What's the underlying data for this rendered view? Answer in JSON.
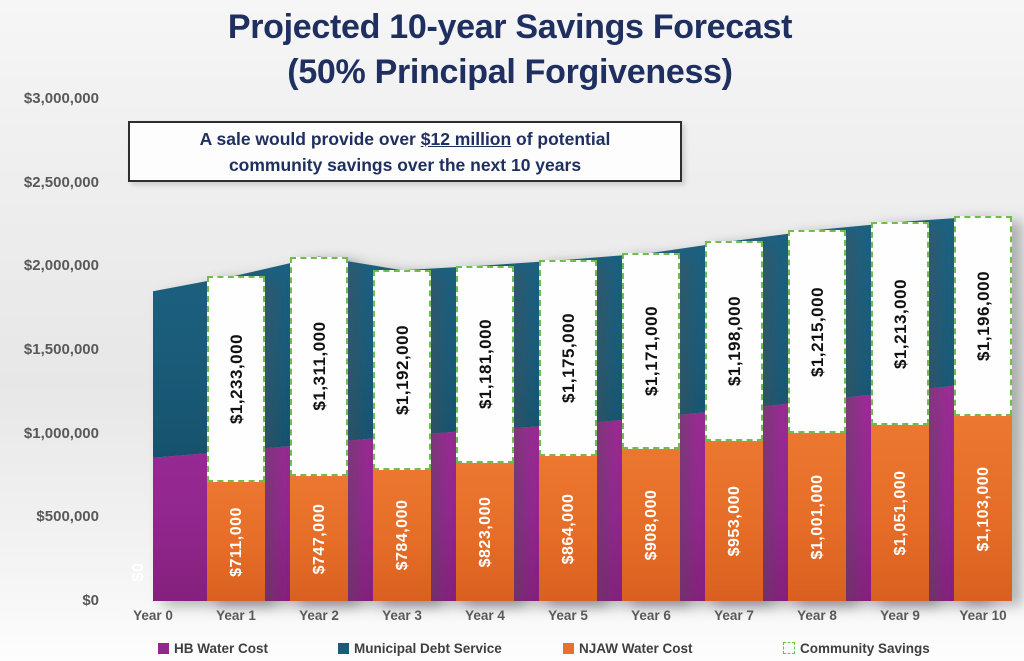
{
  "title": {
    "line1": "Projected 10-year Savings Forecast",
    "line2": "(50% Principal Forgiveness)"
  },
  "callout": {
    "prefix": "A sale would provide over ",
    "highlight": "$12 million",
    "suffix": " of potential",
    "line2": "community savings over the next 10 years"
  },
  "colors": {
    "navy": "#1F3060",
    "axis_gray": "#595959",
    "hb_purple": "#92278F",
    "debt_teal": "#1A5B79",
    "njaw_orange": "#E8702B",
    "savings_green": "#6EBE4C"
  },
  "y_axis": {
    "tick_labels": [
      "$3,000,000",
      "$2,500,000",
      "$2,000,000",
      "$1,500,000",
      "$1,000,000",
      "$500,000",
      "$0"
    ],
    "tick_values": [
      3000000,
      2500000,
      2000000,
      1500000,
      1000000,
      500000,
      0
    ]
  },
  "chart_data": {
    "type": "area",
    "title": "Projected 10-year Savings Forecast (50% Principal Forgiveness)",
    "categories": [
      "Year 0",
      "Year 1",
      "Year 2",
      "Year 3",
      "Year 4",
      "Year 5",
      "Year 6",
      "Year 7",
      "Year 8",
      "Year 9",
      "Year 10"
    ],
    "ylim": [
      0,
      3000000
    ],
    "grid": false,
    "legend_position": "bottom",
    "series": [
      {
        "name": "NJAW Water Cost",
        "render": "bar",
        "color": "#E8702B",
        "values": [
          0,
          711000,
          747000,
          784000,
          823000,
          864000,
          908000,
          953000,
          1001000,
          1051000,
          1103000
        ],
        "labels": [
          "$0",
          "$711,000",
          "$747,000",
          "$784,000",
          "$823,000",
          "$864,000",
          "$908,000",
          "$953,000",
          "$1,001,000",
          "$1,051,000",
          "$1,103,000"
        ]
      },
      {
        "name": "Community Savings",
        "render": "dashed-box",
        "color": "#6EBE4C",
        "values": [
          null,
          1233000,
          1311000,
          1192000,
          1181000,
          1175000,
          1171000,
          1198000,
          1215000,
          1213000,
          1196000
        ],
        "labels": [
          null,
          "$1,233,000",
          "$1,311,000",
          "$1,192,000",
          "$1,181,000",
          "$1,175,000",
          "$1,171,000",
          "$1,198,000",
          "$1,215,000",
          "$1,213,000",
          "$1,196,000"
        ]
      },
      {
        "name": "HB Water Cost",
        "render": "area",
        "color": "#92278F",
        "values_estimated": [
          856000,
          898000,
          940000,
          988000,
          1024000,
          1054000,
          1096000,
          1144000,
          1198000,
          1251000,
          1305000
        ]
      },
      {
        "name": "Municipal Debt Service",
        "render": "area-stacked",
        "color": "#1A5B79",
        "stack_total_estimated": [
          1850000,
          1944000,
          2058000,
          1976000,
          2004000,
          2039000,
          2079000,
          2151000,
          2216000,
          2264000,
          2299000
        ]
      }
    ]
  },
  "legend": {
    "items": [
      {
        "label": "HB Water Cost",
        "swatch": "solid",
        "color": "#92278F"
      },
      {
        "label": "Municipal Debt Service",
        "swatch": "solid",
        "color": "#1A5B79"
      },
      {
        "label": "NJAW Water Cost",
        "swatch": "solid",
        "color": "#E8702B"
      },
      {
        "label": "Community Savings",
        "swatch": "dashed",
        "color": "#6EBE4C"
      }
    ]
  }
}
